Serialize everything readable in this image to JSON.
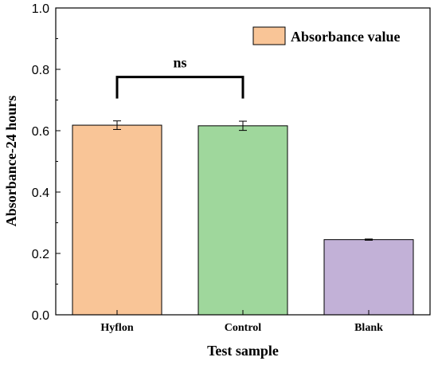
{
  "chart_data": {
    "type": "bar",
    "categories": [
      "Hyflon",
      "Control",
      "Blank"
    ],
    "values": [
      0.618,
      0.616,
      0.245
    ],
    "errors": [
      0.014,
      0.015,
      0.002
    ],
    "colors": [
      "#f9c597",
      "#9fd79c",
      "#c2b1d7"
    ],
    "xlabel": "Test sample",
    "ylabel": "Absorbance-24 hours",
    "ylim": [
      0.0,
      1.0
    ],
    "yticks": [
      "0.0",
      "0.2",
      "0.4",
      "0.6",
      "0.8",
      "1.0"
    ],
    "legend": {
      "label": "Absorbance value",
      "color": "#f9c597",
      "position": "top-right"
    },
    "annotation": {
      "text": "ns",
      "between": [
        "Hyflon",
        "Control"
      ]
    }
  }
}
